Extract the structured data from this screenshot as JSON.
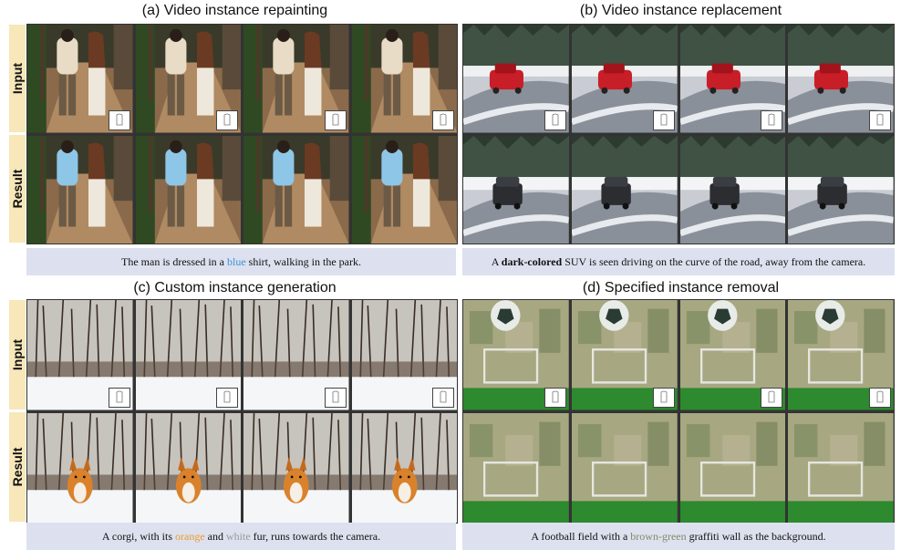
{
  "colors": {
    "row_label_bg": "#f7e7b9",
    "caption_bg": "#dde1ef",
    "highlight_blue": "#3d8fd6",
    "highlight_orange": "#e99a2c",
    "highlight_white": "#999999",
    "highlight_brown_green": "#7f8a6a"
  },
  "panels": {
    "a": {
      "title": "(a) Video instance repainting",
      "row_labels": [
        "Input",
        "Result"
      ],
      "caption": {
        "before": "The man is dressed in a ",
        "highlight": "blue",
        "after": " shirt, walking in the park."
      }
    },
    "b": {
      "title": "(b) Video instance replacement",
      "caption": {
        "before": "A ",
        "highlight": "dark-colored",
        "after": " SUV is seen driving on the curve of the road, away from the camera."
      }
    },
    "c": {
      "title": "(c) Custom instance generation",
      "row_labels": [
        "Input",
        "Result"
      ],
      "caption": {
        "before": "A corgi, with its ",
        "highlight1": "orange",
        "middle": " and ",
        "highlight2": "white",
        "after": " fur, runs towards the camera."
      }
    },
    "d": {
      "title": "(d) Specified instance removal",
      "caption": {
        "before": "A football field with a ",
        "highlight": "brown-green",
        "after": " graffiti wall as the background."
      }
    }
  }
}
